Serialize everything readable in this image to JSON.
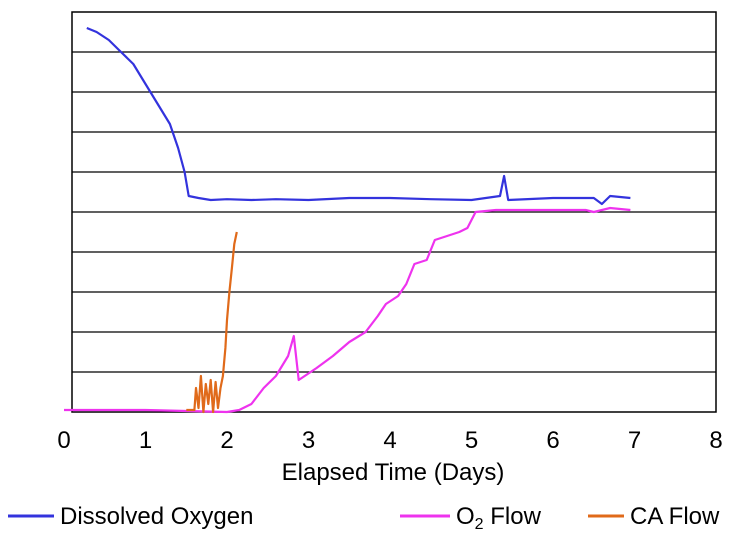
{
  "chart_data": {
    "type": "line",
    "xlabel": "Elapsed Time (Days)",
    "ylabel": "",
    "xlim": [
      0,
      8
    ],
    "x_ticks": [
      "0",
      "1",
      "2",
      "3",
      "4",
      "5",
      "6",
      "7",
      "8"
    ],
    "y_ticks": [],
    "ylim": [
      0,
      10
    ],
    "grid": "horizontal",
    "legend": "bottom",
    "series": [
      {
        "name": "Dissolved Oxygen",
        "legend_prefix": "",
        "legend_sub": "",
        "legend_suffix": "Dissolved Oxygen",
        "color": "#3333dd",
        "points": [
          [
            0.28,
            9.6
          ],
          [
            0.4,
            9.5
          ],
          [
            0.55,
            9.3
          ],
          [
            0.7,
            9.0
          ],
          [
            0.85,
            8.7
          ],
          [
            1.0,
            8.2
          ],
          [
            1.15,
            7.7
          ],
          [
            1.3,
            7.2
          ],
          [
            1.4,
            6.6
          ],
          [
            1.48,
            6.0
          ],
          [
            1.53,
            5.4
          ],
          [
            1.65,
            5.35
          ],
          [
            1.8,
            5.3
          ],
          [
            2.0,
            5.32
          ],
          [
            2.3,
            5.3
          ],
          [
            2.6,
            5.32
          ],
          [
            3.0,
            5.3
          ],
          [
            3.5,
            5.35
          ],
          [
            4.0,
            5.35
          ],
          [
            4.5,
            5.32
          ],
          [
            5.0,
            5.3
          ],
          [
            5.35,
            5.4
          ],
          [
            5.4,
            5.9
          ],
          [
            5.45,
            5.3
          ],
          [
            6.0,
            5.35
          ],
          [
            6.5,
            5.35
          ],
          [
            6.6,
            5.2
          ],
          [
            6.7,
            5.4
          ],
          [
            6.95,
            5.35
          ]
        ]
      },
      {
        "name": "O2 Flow",
        "legend_prefix": "O",
        "legend_sub": "2",
        "legend_suffix": " Flow",
        "color": "#ee33ee",
        "points": [
          [
            0.0,
            0.05
          ],
          [
            1.0,
            0.05
          ],
          [
            2.0,
            0.0
          ],
          [
            2.15,
            0.05
          ],
          [
            2.3,
            0.2
          ],
          [
            2.45,
            0.6
          ],
          [
            2.6,
            0.9
          ],
          [
            2.75,
            1.4
          ],
          [
            2.82,
            1.9
          ],
          [
            2.88,
            0.8
          ],
          [
            3.1,
            1.1
          ],
          [
            3.3,
            1.4
          ],
          [
            3.5,
            1.75
          ],
          [
            3.7,
            2.0
          ],
          [
            3.85,
            2.4
          ],
          [
            3.95,
            2.7
          ],
          [
            4.1,
            2.9
          ],
          [
            4.2,
            3.2
          ],
          [
            4.3,
            3.7
          ],
          [
            4.45,
            3.8
          ],
          [
            4.55,
            4.3
          ],
          [
            4.7,
            4.4
          ],
          [
            4.85,
            4.5
          ],
          [
            4.95,
            4.6
          ],
          [
            5.05,
            5.0
          ],
          [
            5.3,
            5.05
          ],
          [
            5.6,
            5.05
          ],
          [
            6.0,
            5.05
          ],
          [
            6.4,
            5.05
          ],
          [
            6.5,
            5.0
          ],
          [
            6.7,
            5.1
          ],
          [
            6.95,
            5.05
          ]
        ]
      },
      {
        "name": "CA Flow",
        "legend_prefix": "",
        "legend_sub": "",
        "legend_suffix": "CA Flow",
        "color": "#e06a1a",
        "points": [
          [
            1.5,
            0.05
          ],
          [
            1.6,
            0.05
          ],
          [
            1.62,
            0.6
          ],
          [
            1.65,
            0.1
          ],
          [
            1.68,
            0.9
          ],
          [
            1.71,
            0.0
          ],
          [
            1.74,
            0.7
          ],
          [
            1.77,
            0.2
          ],
          [
            1.8,
            0.8
          ],
          [
            1.83,
            0.0
          ],
          [
            1.86,
            0.75
          ],
          [
            1.89,
            0.1
          ],
          [
            1.92,
            0.6
          ],
          [
            1.95,
            0.9
          ],
          [
            1.98,
            1.6
          ],
          [
            2.0,
            2.3
          ],
          [
            2.03,
            3.0
          ],
          [
            2.06,
            3.6
          ],
          [
            2.09,
            4.2
          ],
          [
            2.12,
            4.5
          ]
        ]
      }
    ]
  }
}
